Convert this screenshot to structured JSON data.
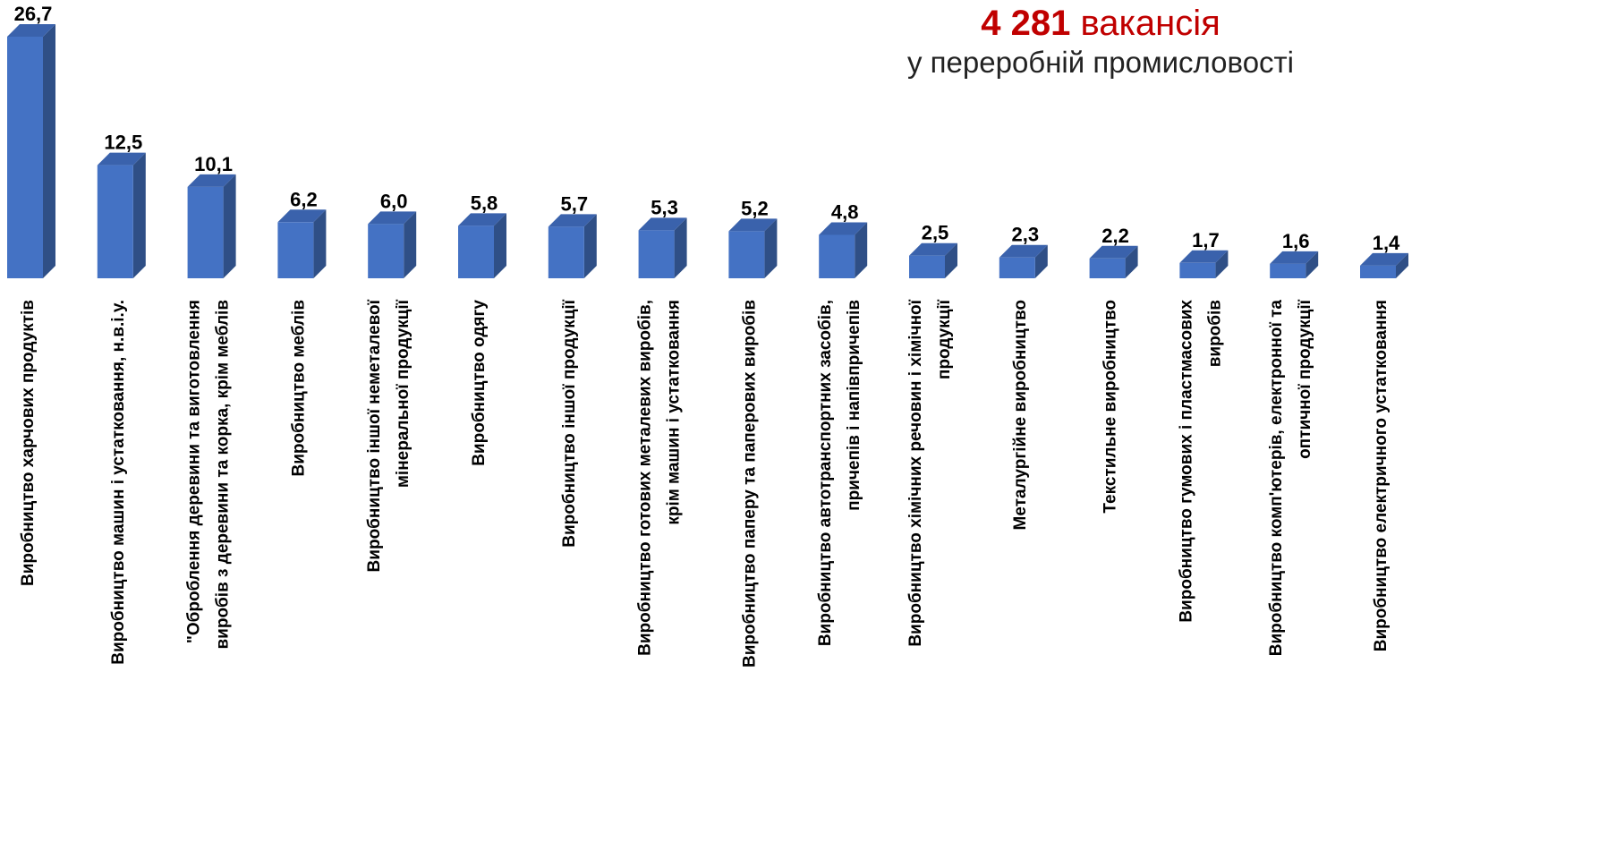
{
  "headline": {
    "count": "4 281",
    "unit": "вакансія",
    "subtitle": "у переробній промисловості"
  },
  "colors": {
    "bar_front": "#4472c4",
    "bar_side": "#2f4f86",
    "bar_top": "#3a62ac",
    "accent": "#c00000"
  },
  "chart_data": {
    "type": "bar",
    "style": "3d-column",
    "grid": false,
    "legend": "none",
    "ylim": [
      0,
      27.5
    ],
    "categories": [
      "Виробництво харчових продуктів",
      "Виробництво машин і устатковання, н.в.і.у.",
      "\"Оброблення деревини та виготовлення виробів з деревини та корка, крім меблів",
      "Виробництво меблів",
      "Виробництво іншої неметалевої мінеральної продукції",
      "Виробництво одягу",
      "Виробництво іншої продукції",
      "Виробництво готових металевих виробів, крім машин і устатковання",
      "Виробництво паперу та паперових виробів",
      "Виробництво автотранспортних засобів, причепів і напівпричепів",
      "Виробництво хімічних речовин і хімічної продукції",
      "Металургійне виробництво",
      "Текстильне виробництво",
      "Виробництво гумових і пластмасових виробів",
      "Виробництво комп'ютерів, електронної та оптичної продукції",
      "Виробництво електричного устатковання"
    ],
    "values": [
      26.7,
      12.5,
      10.1,
      6.2,
      6.0,
      5.8,
      5.7,
      5.3,
      5.2,
      4.8,
      2.5,
      2.3,
      2.2,
      1.7,
      1.6,
      1.4
    ],
    "value_labels": [
      "26,7",
      "12,5",
      "10,1",
      "6,2",
      "6,0",
      "5,8",
      "5,7",
      "5,3",
      "5,2",
      "4,8",
      "2,5",
      "2,3",
      "2,2",
      "1,7",
      "1,6",
      "1,4"
    ],
    "category_label_lines": [
      [
        "Виробництво харчових продуктів"
      ],
      [
        "Виробництво машин і устатковання, н.в.і.у."
      ],
      [
        "\"Оброблення деревини та виготовлення",
        "виробів з деревини та корка, крім меблів"
      ],
      [
        "Виробництво меблів"
      ],
      [
        "Виробництво іншої неметалевої",
        "мінеральної продукції"
      ],
      [
        "Виробництво одягу"
      ],
      [
        "Виробництво іншої продукції"
      ],
      [
        "Виробництво готових металевих виробів,",
        "крім машин і устатковання"
      ],
      [
        "Виробництво паперу та паперових виробів"
      ],
      [
        "Виробництво автотранспортних засобів,",
        "причепів і напівпричепів"
      ],
      [
        "Виробництво хімічних речовин і хімічної",
        "продукції"
      ],
      [
        "Металургійне виробництво"
      ],
      [
        "Текстильне виробництво"
      ],
      [
        "Виробництво гумових і пластмасових",
        "виробів"
      ],
      [
        "Виробництво комп'ютерів, електронної та",
        "оптичної продукції"
      ],
      [
        "Виробництво електричного устатковання"
      ]
    ]
  }
}
